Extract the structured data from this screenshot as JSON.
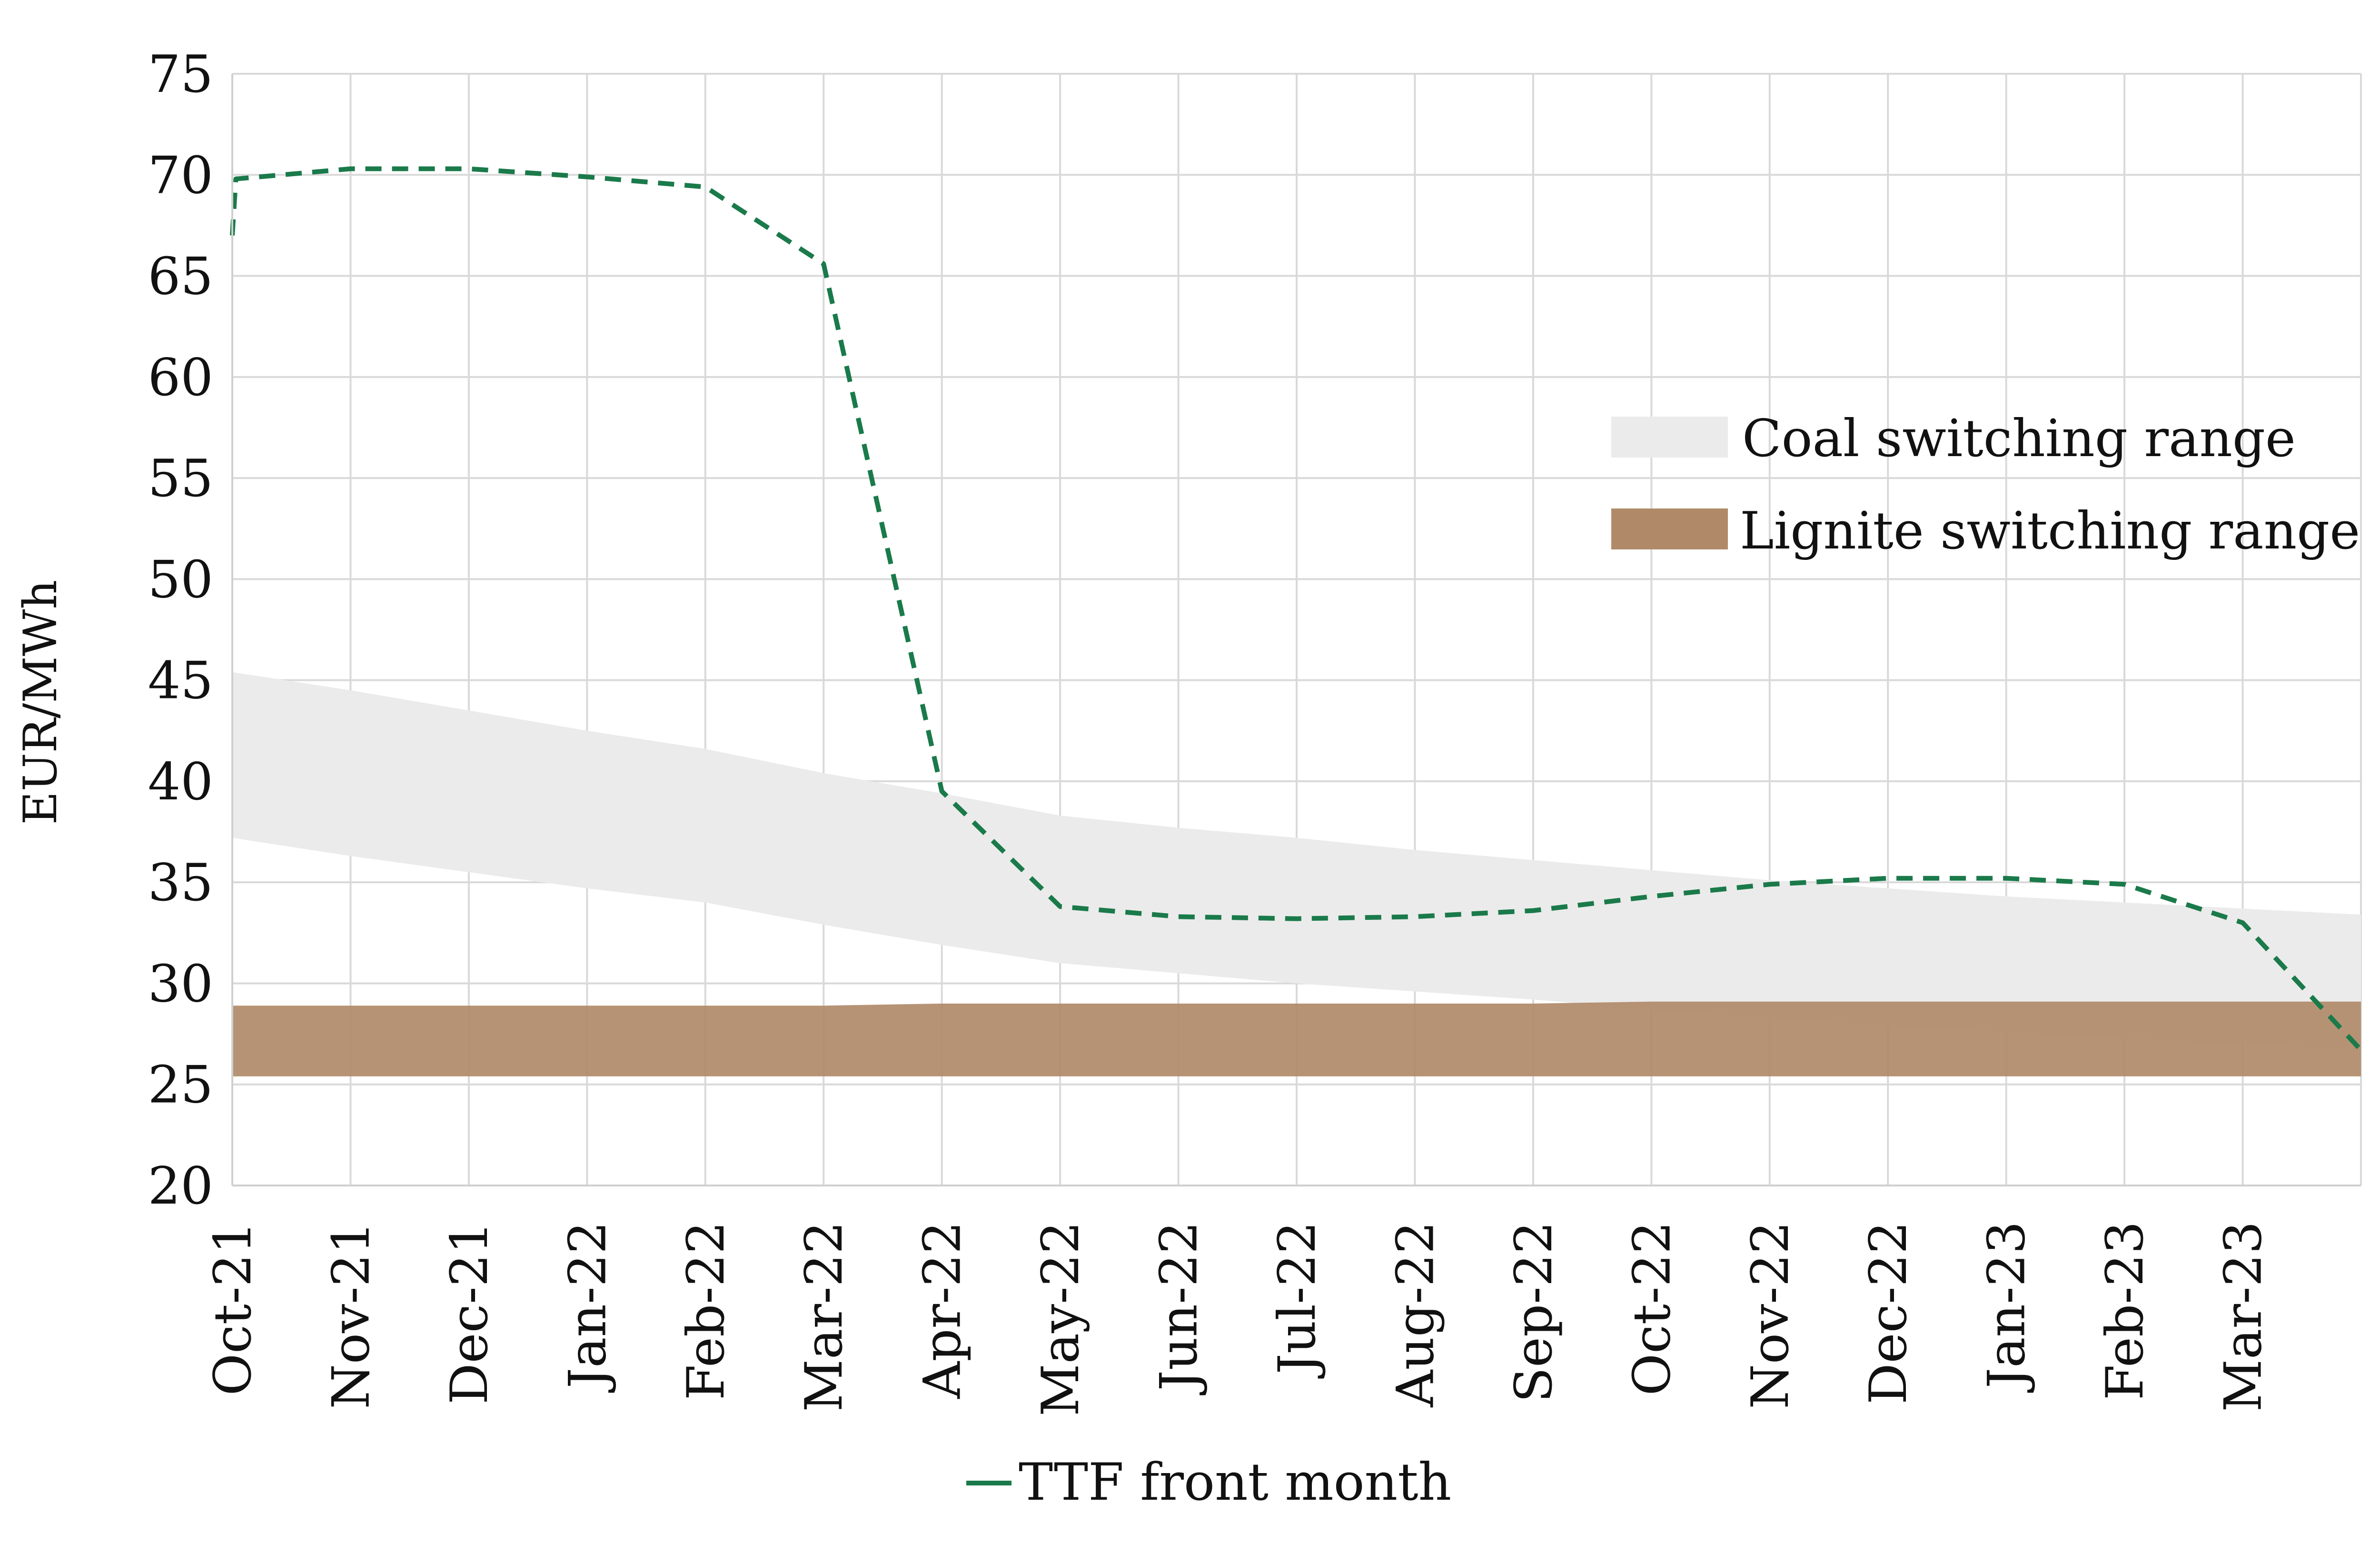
{
  "chart_data": {
    "type": "area",
    "title": "",
    "xlabel": "",
    "ylabel": "EUR/MWh",
    "ylim": [
      20,
      75
    ],
    "yticks": [
      "20",
      "25",
      "30",
      "35",
      "40",
      "45",
      "50",
      "55",
      "60",
      "65",
      "70",
      "75"
    ],
    "grid": true,
    "categories": [
      "Oct-21",
      "Nov-21",
      "Dec-21",
      "Jan-22",
      "Feb-22",
      "Mar-22",
      "Apr-22",
      "May-22",
      "Jun-22",
      "Jul-22",
      "Aug-22",
      "Sep-22",
      "Oct-22",
      "Nov-22",
      "Dec-22",
      "Jan-23",
      "Feb-23",
      "Mar-23"
    ],
    "bands": [
      {
        "name": "Coal switching range",
        "color": "#ebebeb",
        "x": [
          0,
          1,
          2,
          3,
          4,
          5,
          6,
          7,
          8,
          9,
          10,
          11,
          12,
          13,
          14,
          15,
          16,
          17,
          18
        ],
        "low": [
          37.2,
          36.3,
          35.5,
          34.7,
          34.0,
          32.9,
          31.9,
          31.0,
          30.5,
          30.0,
          29.6,
          29.2,
          28.7,
          28.3,
          27.9,
          27.6,
          27.3,
          27.0,
          26.7
        ],
        "high": [
          45.4,
          44.5,
          43.5,
          42.5,
          41.6,
          40.4,
          39.4,
          38.3,
          37.7,
          37.2,
          36.6,
          36.1,
          35.6,
          35.1,
          34.7,
          34.3,
          34.0,
          33.7,
          33.4
        ]
      },
      {
        "name": "Lignite switching range",
        "color": "#b08a68",
        "x": [
          0,
          1,
          2,
          3,
          4,
          5,
          6,
          7,
          8,
          9,
          10,
          11,
          12,
          13,
          14,
          15,
          16,
          17,
          18
        ],
        "low": [
          25.4,
          25.4,
          25.4,
          25.4,
          25.4,
          25.4,
          25.4,
          25.4,
          25.4,
          25.4,
          25.4,
          25.4,
          25.4,
          25.4,
          25.4,
          25.4,
          25.4,
          25.4,
          25.4
        ],
        "high": [
          28.9,
          28.9,
          28.9,
          28.9,
          28.9,
          28.9,
          29.0,
          29.0,
          29.0,
          29.0,
          29.0,
          29.0,
          29.1,
          29.1,
          29.1,
          29.1,
          29.1,
          29.1,
          29.1
        ]
      }
    ],
    "series": [
      {
        "name": "TTF front month",
        "color": "#1a7a4a",
        "style": "dashed",
        "x": [
          0,
          0.03,
          1,
          2,
          3,
          4,
          5,
          6,
          7,
          8,
          9,
          10,
          11,
          12,
          13,
          14,
          15,
          16,
          17,
          18
        ],
        "values": [
          67.0,
          69.8,
          70.3,
          70.3,
          69.9,
          69.4,
          65.6,
          39.5,
          33.8,
          33.3,
          33.2,
          33.3,
          33.6,
          34.3,
          34.9,
          35.2,
          35.2,
          34.9,
          33.0,
          26.7
        ]
      }
    ],
    "legend": {
      "placement": "top-right",
      "items": [
        "Coal switching range",
        "Lignite switching range"
      ],
      "bottom_item": "TTF front month"
    }
  }
}
